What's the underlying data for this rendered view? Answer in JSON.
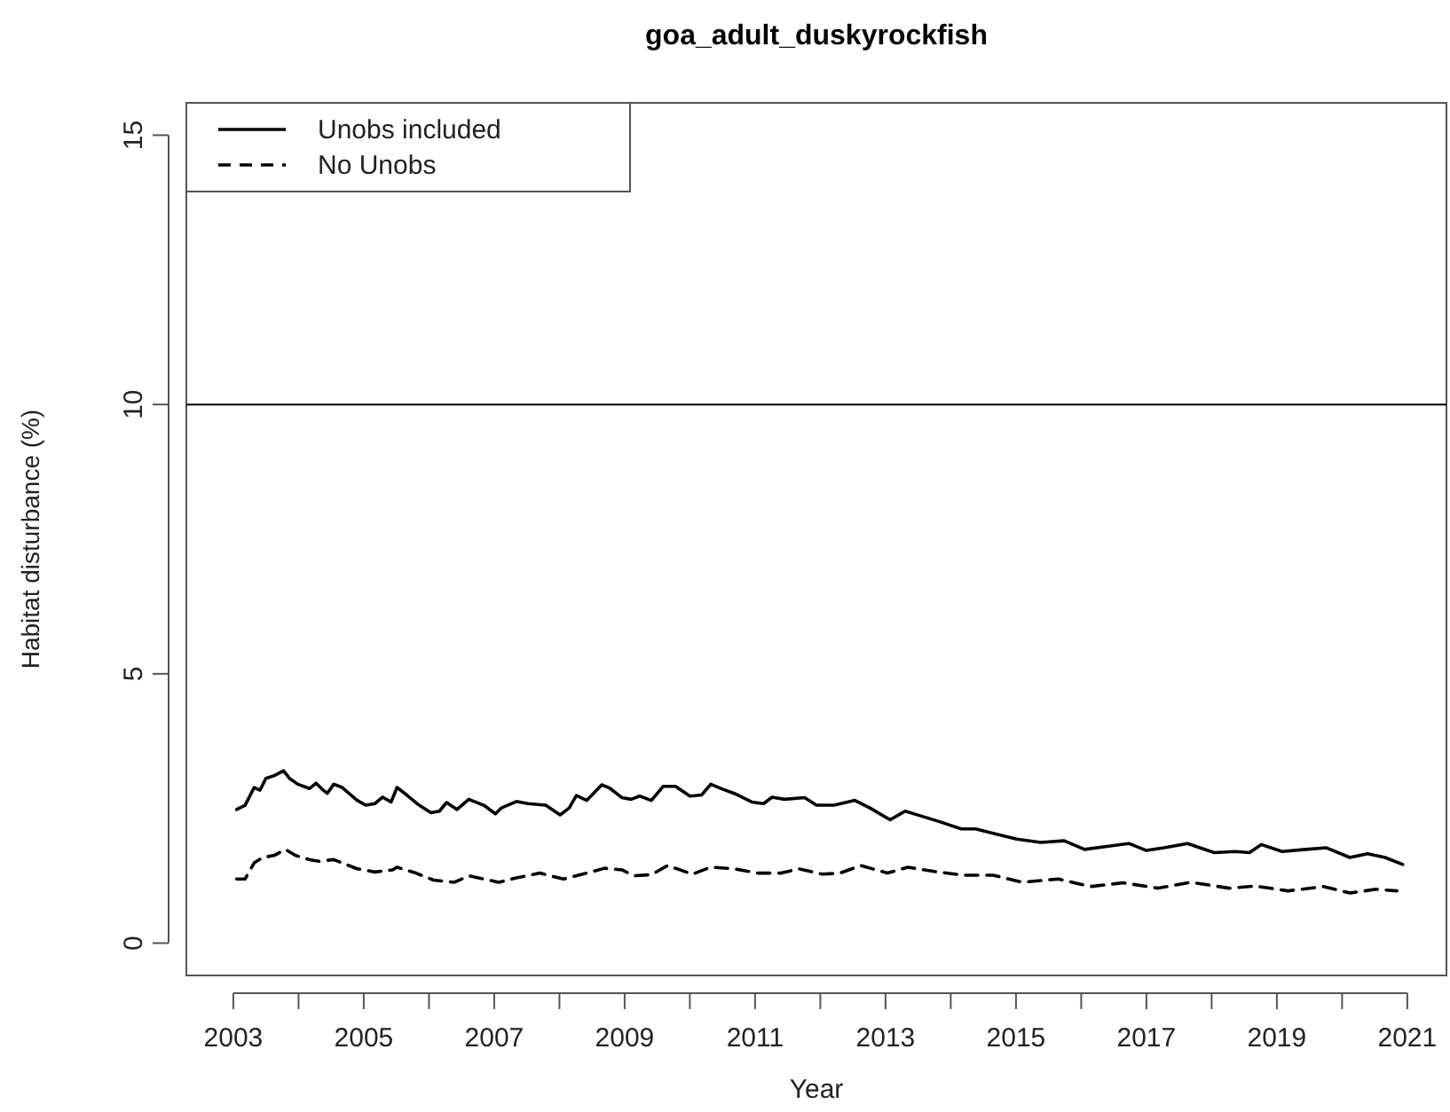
{
  "chart_data": {
    "type": "line",
    "title": "goa_adult_duskyrockfish",
    "xlabel": "Year",
    "ylabel": "Habitat disturbance (%)",
    "xlim": [
      2002.28,
      2021.6
    ],
    "ylim": [
      -0.6,
      15.6
    ],
    "xticks": [
      2003,
      {
        "value": 2004,
        "label": null
      },
      2005,
      {
        "value": 2006,
        "label": null
      },
      2007,
      {
        "value": 2008,
        "label": null
      },
      2009,
      {
        "value": 2010,
        "label": null
      },
      2011,
      {
        "value": 2012,
        "label": null
      },
      2013,
      {
        "value": 2014,
        "label": null
      },
      2015,
      {
        "value": 2016,
        "label": null
      },
      2017,
      {
        "value": 2018,
        "label": null
      },
      2019,
      {
        "value": 2020,
        "label": null
      },
      2021
    ],
    "yticks": [
      0,
      5,
      10,
      15
    ],
    "grid": false,
    "legend": "top left",
    "ref_lines": [
      {
        "axis": "y",
        "value": 10,
        "color": "#000000"
      }
    ],
    "series": [
      {
        "name": "Unobs included",
        "color": "#000000",
        "line_style": "solid",
        "x": [
          2003.05,
          2003.18,
          2003.32,
          2003.41,
          2003.5,
          2003.63,
          2003.77,
          2003.86,
          2003.99,
          2004.17,
          2004.27,
          2004.36,
          2004.44,
          2004.54,
          2004.67,
          2004.9,
          2005.03,
          2005.17,
          2005.29,
          2005.42,
          2005.51,
          2005.66,
          2005.85,
          2006.03,
          2006.16,
          2006.27,
          2006.43,
          2006.61,
          2006.84,
          2007.02,
          2007.11,
          2007.34,
          2007.52,
          2007.79,
          2008.01,
          2008.15,
          2008.26,
          2008.42,
          2008.65,
          2008.78,
          2008.96,
          2009.1,
          2009.23,
          2009.41,
          2009.59,
          2009.78,
          2010.0,
          2010.18,
          2010.32,
          2010.5,
          2010.68,
          2010.95,
          2011.13,
          2011.26,
          2011.45,
          2011.76,
          2011.94,
          2012.21,
          2012.53,
          2012.76,
          2013.07,
          2013.3,
          2013.52,
          2013.84,
          2014.16,
          2014.38,
          2014.65,
          2015.01,
          2015.38,
          2015.74,
          2016.05,
          2016.37,
          2016.73,
          2017.0,
          2017.27,
          2017.63,
          2018.04,
          2018.36,
          2018.58,
          2018.76,
          2019.08,
          2019.44,
          2019.76,
          2020.12,
          2020.39,
          2020.66,
          2020.93
        ],
        "values": [
          2.48,
          2.56,
          2.89,
          2.84,
          3.06,
          3.11,
          3.2,
          3.06,
          2.95,
          2.87,
          2.97,
          2.86,
          2.78,
          2.95,
          2.89,
          2.65,
          2.56,
          2.59,
          2.71,
          2.62,
          2.89,
          2.75,
          2.56,
          2.42,
          2.45,
          2.61,
          2.48,
          2.67,
          2.56,
          2.4,
          2.51,
          2.63,
          2.59,
          2.56,
          2.38,
          2.51,
          2.74,
          2.65,
          2.94,
          2.87,
          2.7,
          2.67,
          2.73,
          2.65,
          2.91,
          2.91,
          2.73,
          2.75,
          2.95,
          2.86,
          2.78,
          2.62,
          2.59,
          2.71,
          2.67,
          2.7,
          2.56,
          2.56,
          2.65,
          2.51,
          2.29,
          2.45,
          2.37,
          2.25,
          2.12,
          2.12,
          2.04,
          1.93,
          1.87,
          1.9,
          1.74,
          1.79,
          1.85,
          1.72,
          1.77,
          1.85,
          1.68,
          1.7,
          1.68,
          1.83,
          1.7,
          1.74,
          1.77,
          1.59,
          1.66,
          1.59,
          1.46
        ]
      },
      {
        "name": "No Unobs",
        "color": "#000000",
        "line_style": "dashed",
        "x": [
          2003.05,
          2003.18,
          2003.32,
          2003.45,
          2003.63,
          2003.8,
          2003.95,
          2004.17,
          2004.31,
          2004.54,
          2004.9,
          2005.17,
          2005.44,
          2005.51,
          2005.8,
          2006.07,
          2006.39,
          2006.61,
          2006.84,
          2007.07,
          2007.34,
          2007.7,
          2008.06,
          2008.42,
          2008.69,
          2008.96,
          2009.14,
          2009.41,
          2009.66,
          2010.04,
          2010.32,
          2010.68,
          2011.04,
          2011.4,
          2011.67,
          2012.03,
          2012.3,
          2012.62,
          2013.03,
          2013.34,
          2013.75,
          2014.2,
          2014.65,
          2015.1,
          2015.65,
          2016.14,
          2016.64,
          2017.18,
          2017.68,
          2018.27,
          2018.67,
          2019.17,
          2019.71,
          2020.12,
          2020.52,
          2020.84
        ],
        "values": [
          1.19,
          1.19,
          1.49,
          1.59,
          1.63,
          1.74,
          1.63,
          1.55,
          1.52,
          1.55,
          1.38,
          1.32,
          1.36,
          1.41,
          1.3,
          1.17,
          1.13,
          1.25,
          1.19,
          1.13,
          1.21,
          1.3,
          1.19,
          1.3,
          1.39,
          1.36,
          1.25,
          1.27,
          1.44,
          1.28,
          1.41,
          1.38,
          1.3,
          1.3,
          1.38,
          1.28,
          1.3,
          1.44,
          1.3,
          1.41,
          1.33,
          1.26,
          1.26,
          1.13,
          1.19,
          1.05,
          1.12,
          1.02,
          1.13,
          1.02,
          1.06,
          0.97,
          1.05,
          0.93,
          1.0,
          0.97
        ]
      }
    ]
  }
}
